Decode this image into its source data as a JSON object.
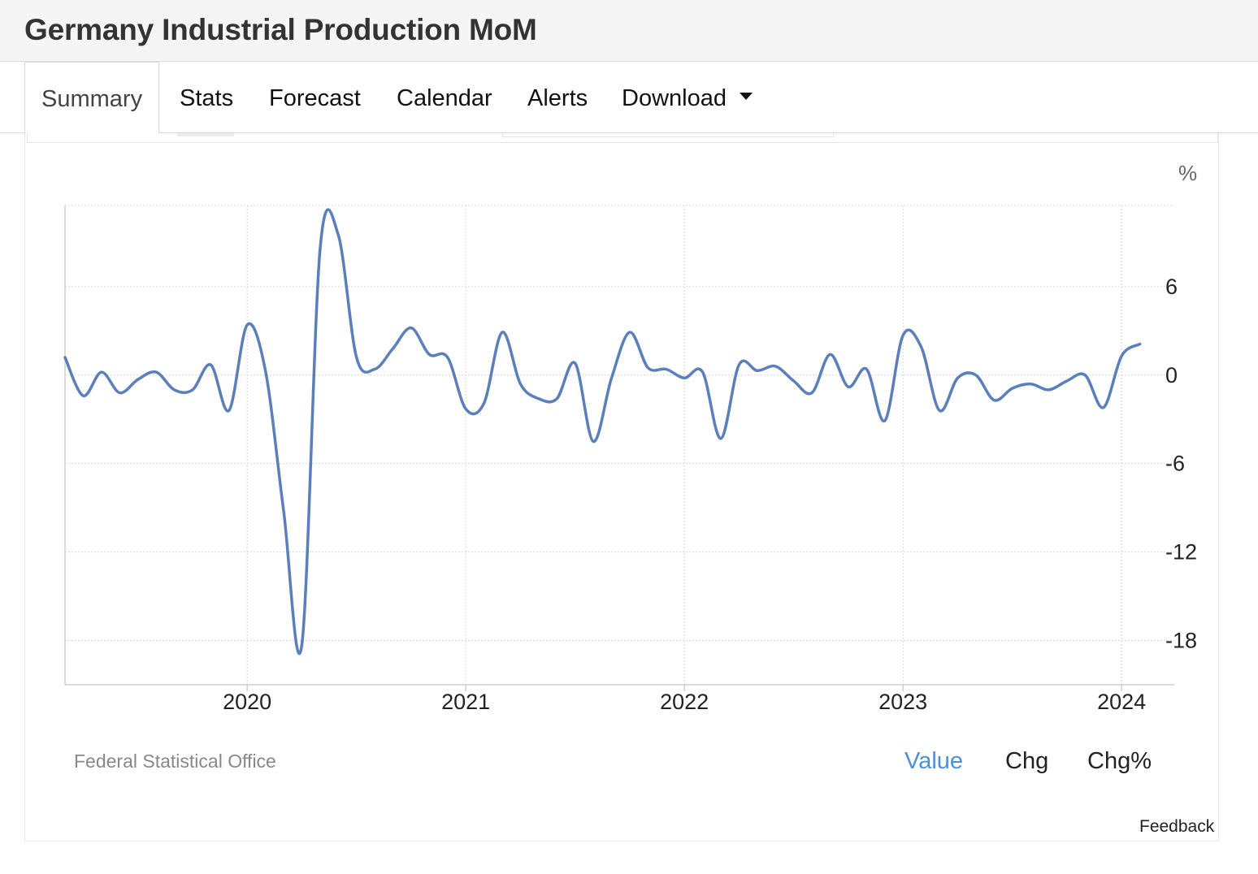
{
  "header": {
    "title": "Germany Industrial Production MoM"
  },
  "tabs": [
    {
      "label": "Summary",
      "active": true
    },
    {
      "label": "Stats"
    },
    {
      "label": "Forecast"
    },
    {
      "label": "Calendar"
    },
    {
      "label": "Alerts"
    },
    {
      "label": "Download",
      "icon": "caret-down-icon"
    }
  ],
  "source": "Federal Statistical Office",
  "toggles": {
    "value": "Value",
    "chg": "Chg",
    "chgpct": "Chg%"
  },
  "feedback": "Feedback",
  "colors": {
    "line": "#5b7fba",
    "active_toggle": "#4a90d9",
    "grid": "#d6d6d6"
  },
  "chart_data": {
    "type": "line",
    "title": "",
    "xlabel": "",
    "ylabel": "",
    "unit": "%",
    "x_start": "2019-03",
    "x_end": "2024-03",
    "xlim": [
      "2019-03",
      "2024-03"
    ],
    "ylim": [
      -21,
      11.5
    ],
    "yticks": [
      6,
      0,
      -6,
      -12,
      -18
    ],
    "ytick_labels": [
      "6",
      "0",
      "-6",
      "-12",
      "-18"
    ],
    "xticks": [
      "2020-01",
      "2021-01",
      "2022-01",
      "2023-01",
      "2024-01"
    ],
    "xtick_labels": [
      "2020",
      "2021",
      "2022",
      "2023",
      "2024"
    ],
    "grid": true,
    "series": [
      {
        "x": [
          "2019-03",
          "2019-04",
          "2019-05",
          "2019-06",
          "2019-07",
          "2019-08",
          "2019-09",
          "2019-10",
          "2019-11",
          "2019-12",
          "2020-01",
          "2020-02",
          "2020-03",
          "2020-04",
          "2020-05",
          "2020-06",
          "2020-07",
          "2020-08",
          "2020-09",
          "2020-10",
          "2020-11",
          "2020-12",
          "2021-01",
          "2021-02",
          "2021-03",
          "2021-04",
          "2021-05",
          "2021-06",
          "2021-07",
          "2021-08",
          "2021-09",
          "2021-10",
          "2021-11",
          "2021-12",
          "2022-01",
          "2022-02",
          "2022-03",
          "2022-04",
          "2022-05",
          "2022-06",
          "2022-07",
          "2022-08",
          "2022-09",
          "2022-10",
          "2022-11",
          "2022-12",
          "2023-01",
          "2023-02",
          "2023-03",
          "2023-04",
          "2023-05",
          "2023-06",
          "2023-07",
          "2023-08",
          "2023-09",
          "2023-10",
          "2023-11",
          "2023-12",
          "2024-01",
          "2024-02"
        ],
        "values": [
          1.2,
          -1.4,
          0.2,
          -1.2,
          -0.3,
          0.2,
          -1.0,
          -1.0,
          0.7,
          -2.4,
          3.4,
          0.3,
          -9.2,
          -18.3,
          8.5,
          9.5,
          1.2,
          0.4,
          1.8,
          3.2,
          1.4,
          1.2,
          -2.3,
          -1.9,
          2.9,
          -0.6,
          -1.6,
          -1.6,
          0.8,
          -4.5,
          -0.2,
          2.9,
          0.5,
          0.4,
          -0.2,
          0.2,
          -4.3,
          0.7,
          0.3,
          0.6,
          -0.4,
          -1.2,
          1.4,
          -0.8,
          0.4,
          -3.1,
          2.7,
          1.9,
          -2.4,
          -0.2,
          0.0,
          -1.7,
          -0.9,
          -0.6,
          -1.0,
          -0.4,
          0.0,
          -2.2,
          1.3,
          2.1
        ]
      }
    ]
  }
}
